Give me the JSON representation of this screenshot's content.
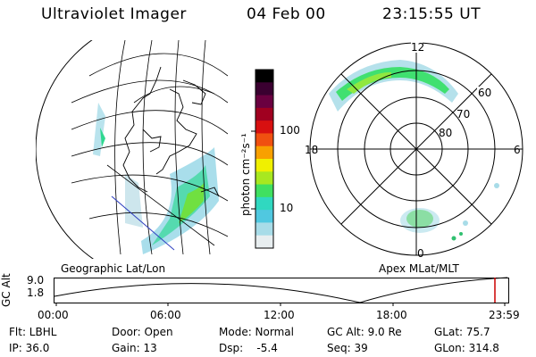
{
  "header": {
    "instrument": "Ultraviolet Imager",
    "date": "04 Feb 00",
    "time": "23:15:55 UT"
  },
  "colorbar": {
    "label": "photon cm⁻²s⁻¹",
    "ticks": [
      "100",
      "10"
    ],
    "scale": "log",
    "colors": [
      "#000000",
      "#3a0030",
      "#6a0040",
      "#a00020",
      "#d81010",
      "#f05010",
      "#f8a000",
      "#f0f000",
      "#a8e820",
      "#40e060",
      "#30d8c0",
      "#50c8e0",
      "#a8dce8",
      "#e8eef0"
    ]
  },
  "right_panel": {
    "mlt_labels": [
      "12",
      "18",
      "6",
      "0"
    ],
    "lat_labels": [
      "60",
      "70",
      "80"
    ]
  },
  "timeline": {
    "left_title": "Geographic Lat/Lon",
    "right_title": "Apex  MLat/MLT",
    "y_axis_label": "GC Alt",
    "y_ticks": [
      "9.0",
      "1.8"
    ],
    "x_ticks": [
      "00:00",
      "06:00",
      "12:00",
      "18:00",
      "23:59"
    ],
    "current_time_color": "#cc0000"
  },
  "status": {
    "flt": "Flt: LBHL",
    "door": "Door: Open",
    "mode": "Mode: Normal",
    "gc_alt": "GC Alt: 9.0 Re",
    "glat": "GLat: 75.7",
    "ip": "IP: 36.0",
    "gain": "Gain: 13",
    "dsp": "Dsp:    -5.4",
    "seq": "Seq: 39",
    "glon": "GLon: 314.8"
  }
}
